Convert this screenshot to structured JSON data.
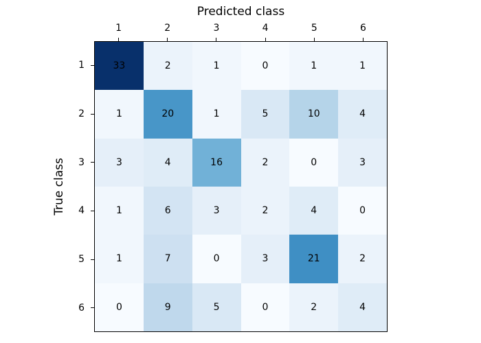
{
  "axes": {
    "x_title": "Predicted class",
    "y_title": "True class"
  },
  "x_tick_labels": [
    "1",
    "2",
    "3",
    "4",
    "5",
    "6"
  ],
  "y_tick_labels": [
    "1",
    "2",
    "3",
    "4",
    "5",
    "6"
  ],
  "matrix": {
    "text_color": "#000000",
    "colors": [
      [
        "#08306b",
        "#ebf3fb",
        "#f1f7fd",
        "#f7fbff",
        "#f1f7fd",
        "#f1f7fd"
      ],
      [
        "#f1f7fd",
        "#4896c8",
        "#f1f7fd",
        "#d9e8f5",
        "#b5d4e9",
        "#dfecf7"
      ],
      [
        "#e5eff9",
        "#dfecf7",
        "#71b1d7",
        "#ebf3fb",
        "#f7fbff",
        "#e5eff9"
      ],
      [
        "#f1f7fd",
        "#d3e4f3",
        "#e5eff9",
        "#ebf3fb",
        "#dfecf7",
        "#f7fbff"
      ],
      [
        "#f1f7fd",
        "#cde0f1",
        "#f7fbff",
        "#e5eff9",
        "#3f8fc4",
        "#ebf3fb"
      ],
      [
        "#f7fbff",
        "#bfd8ec",
        "#d9e8f5",
        "#f7fbff",
        "#ebf3fb",
        "#dfecf7"
      ]
    ]
  },
  "chart_data": {
    "type": "heatmap",
    "title": "Predicted class",
    "xlabel": "Predicted class",
    "ylabel": "True class",
    "x_categories": [
      "1",
      "2",
      "3",
      "4",
      "5",
      "6"
    ],
    "y_categories": [
      "1",
      "2",
      "3",
      "4",
      "5",
      "6"
    ],
    "values": [
      [
        33,
        2,
        1,
        0,
        1,
        1
      ],
      [
        1,
        20,
        1,
        5,
        10,
        4
      ],
      [
        3,
        4,
        16,
        2,
        0,
        3
      ],
      [
        1,
        6,
        3,
        2,
        4,
        0
      ],
      [
        1,
        7,
        0,
        3,
        21,
        2
      ],
      [
        0,
        9,
        5,
        0,
        2,
        4
      ]
    ],
    "colormap": "Blues",
    "vmin": 0,
    "vmax": 33,
    "grid": false,
    "legend": "none",
    "annotations": "cell values drawn in black text"
  }
}
